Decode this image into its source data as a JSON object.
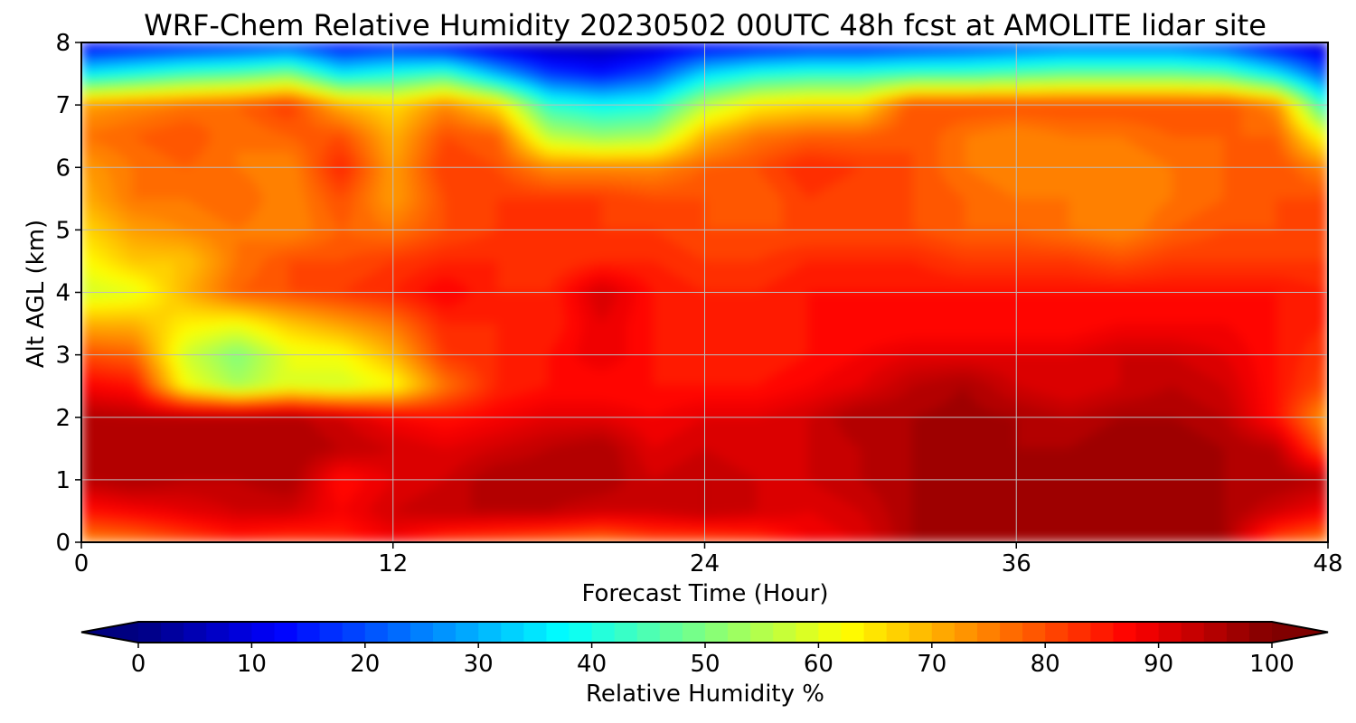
{
  "chart_data": {
    "type": "heatmap",
    "title": "WRF-Chem Relative Humidity 20230502 00UTC 48h fcst at AMOLITE lidar site",
    "xlabel": "Forecast Time (Hour)",
    "ylabel": "Alt AGL (km)",
    "xlim": [
      0,
      48
    ],
    "ylim": [
      0,
      8
    ],
    "xticks": [
      0,
      12,
      24,
      36,
      48
    ],
    "yticks": [
      0,
      1,
      2,
      3,
      4,
      5,
      6,
      7,
      8
    ],
    "grid": true,
    "colorbar": {
      "label": "Relative Humidity %",
      "min": 0,
      "max": 100,
      "ticks": [
        0,
        10,
        20,
        30,
        40,
        50,
        60,
        70,
        80,
        90,
        100
      ],
      "colormap": "jet",
      "extend": "both",
      "levels": 50
    },
    "x": [
      0,
      2,
      4,
      6,
      8,
      10,
      12,
      14,
      16,
      18,
      20,
      22,
      24,
      26,
      28,
      30,
      32,
      34,
      36,
      38,
      40,
      42,
      44,
      46,
      48
    ],
    "y": [
      0,
      0.5,
      1,
      1.5,
      2,
      2.5,
      3,
      3.5,
      4,
      4.5,
      5,
      5.5,
      6,
      6.5,
      7,
      7.5,
      8
    ],
    "values": [
      [
        74,
        76,
        80,
        84,
        82,
        84,
        88,
        82,
        80,
        78,
        76,
        80,
        80,
        82,
        88,
        90,
        96,
        96,
        96,
        96,
        96,
        96,
        96,
        80,
        75
      ],
      [
        86,
        88,
        90,
        92,
        92,
        88,
        92,
        94,
        94,
        94,
        92,
        92,
        94,
        92,
        90,
        92,
        96,
        96,
        96,
        96,
        96,
        96,
        96,
        92,
        88
      ],
      [
        94,
        96,
        94,
        94,
        96,
        86,
        90,
        92,
        96,
        96,
        96,
        92,
        94,
        92,
        92,
        94,
        96,
        96,
        96,
        96,
        96,
        96,
        96,
        96,
        94
      ],
      [
        96,
        96,
        96,
        96,
        96,
        94,
        92,
        90,
        92,
        94,
        96,
        90,
        92,
        90,
        92,
        94,
        96,
        98,
        96,
        96,
        98,
        98,
        96,
        94,
        78
      ],
      [
        95,
        94,
        94,
        94,
        95,
        92,
        88,
        86,
        88,
        90,
        90,
        88,
        90,
        90,
        92,
        96,
        96,
        97,
        96,
        94,
        96,
        96,
        94,
        86,
        72
      ],
      [
        88,
        86,
        62,
        54,
        60,
        58,
        62,
        76,
        84,
        86,
        86,
        86,
        86,
        86,
        88,
        90,
        94,
        96,
        92,
        90,
        92,
        94,
        92,
        86,
        80
      ],
      [
        80,
        78,
        58,
        50,
        60,
        62,
        70,
        82,
        84,
        86,
        90,
        86,
        84,
        84,
        86,
        88,
        90,
        90,
        90,
        90,
        92,
        92,
        90,
        86,
        82
      ],
      [
        70,
        70,
        64,
        62,
        68,
        72,
        76,
        84,
        84,
        84,
        90,
        86,
        84,
        84,
        86,
        86,
        86,
        86,
        86,
        86,
        88,
        88,
        88,
        86,
        84
      ],
      [
        58,
        60,
        70,
        78,
        80,
        82,
        84,
        88,
        84,
        84,
        92,
        86,
        84,
        84,
        86,
        86,
        86,
        86,
        86,
        86,
        86,
        86,
        86,
        86,
        84
      ],
      [
        62,
        68,
        68,
        76,
        80,
        80,
        82,
        84,
        84,
        82,
        84,
        84,
        82,
        82,
        84,
        84,
        84,
        82,
        82,
        82,
        80,
        82,
        82,
        82,
        82
      ],
      [
        66,
        72,
        74,
        76,
        74,
        78,
        76,
        80,
        82,
        82,
        82,
        82,
        80,
        80,
        80,
        80,
        80,
        78,
        78,
        76,
        74,
        78,
        80,
        80,
        80
      ],
      [
        70,
        76,
        76,
        78,
        74,
        80,
        72,
        80,
        82,
        82,
        82,
        80,
        80,
        78,
        82,
        80,
        80,
        78,
        76,
        76,
        74,
        76,
        78,
        80,
        80
      ],
      [
        72,
        76,
        78,
        76,
        74,
        84,
        72,
        82,
        80,
        74,
        74,
        74,
        78,
        80,
        84,
        82,
        80,
        76,
        74,
        74,
        74,
        76,
        78,
        80,
        74
      ],
      [
        76,
        78,
        80,
        76,
        78,
        80,
        70,
        80,
        78,
        56,
        52,
        54,
        70,
        76,
        78,
        78,
        80,
        76,
        74,
        76,
        76,
        78,
        78,
        78,
        60
      ],
      [
        72,
        74,
        76,
        78,
        82,
        70,
        66,
        74,
        66,
        42,
        38,
        40,
        56,
        64,
        66,
        66,
        80,
        80,
        80,
        80,
        80,
        80,
        80,
        74,
        40
      ],
      [
        36,
        40,
        44,
        46,
        50,
        36,
        40,
        44,
        30,
        18,
        14,
        20,
        34,
        40,
        42,
        42,
        44,
        44,
        46,
        48,
        48,
        48,
        46,
        36,
        20
      ],
      [
        10,
        12,
        14,
        16,
        18,
        12,
        14,
        10,
        6,
        4,
        4,
        6,
        10,
        12,
        14,
        14,
        16,
        18,
        20,
        22,
        22,
        22,
        18,
        10,
        6
      ]
    ]
  }
}
